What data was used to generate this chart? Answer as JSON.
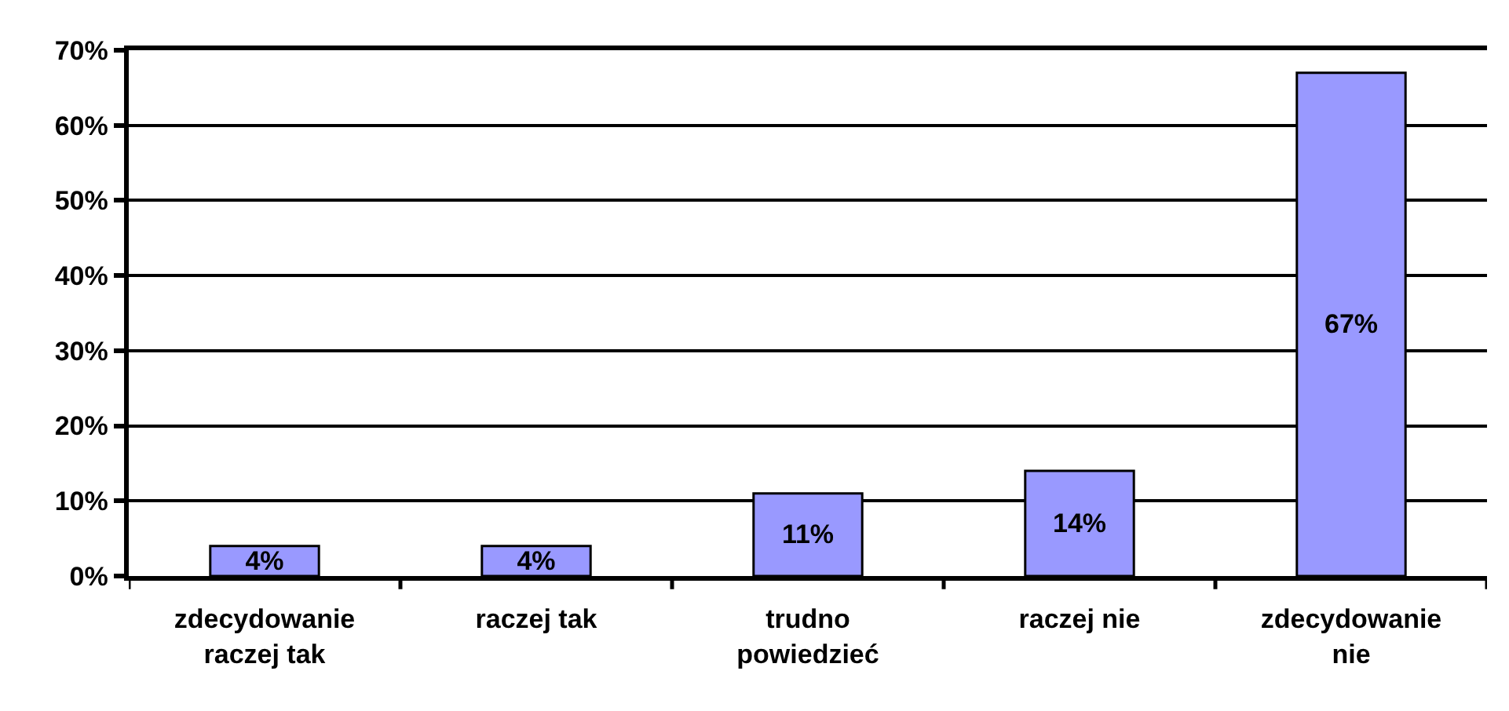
{
  "chart_data": {
    "type": "bar",
    "categories": [
      "zdecydowanie raczej tak",
      "raczej tak",
      "trudno powiedzieć",
      "raczej nie",
      "zdecydowanie nie"
    ],
    "values": [
      4,
      4,
      11,
      14,
      67
    ],
    "value_labels": [
      "4%",
      "4%",
      "11%",
      "14%",
      "67%"
    ],
    "color": "#9999ff",
    "ylim": [
      0,
      70
    ],
    "yticks": [
      {
        "value": 0,
        "label": "0%"
      },
      {
        "value": 10,
        "label": "10%"
      },
      {
        "value": 20,
        "label": "20%"
      },
      {
        "value": 30,
        "label": "30%"
      },
      {
        "value": 40,
        "label": "40%"
      },
      {
        "value": 50,
        "label": "50%"
      },
      {
        "value": 60,
        "label": "60%"
      },
      {
        "value": 70,
        "label": "70%"
      }
    ],
    "grid": "y"
  }
}
